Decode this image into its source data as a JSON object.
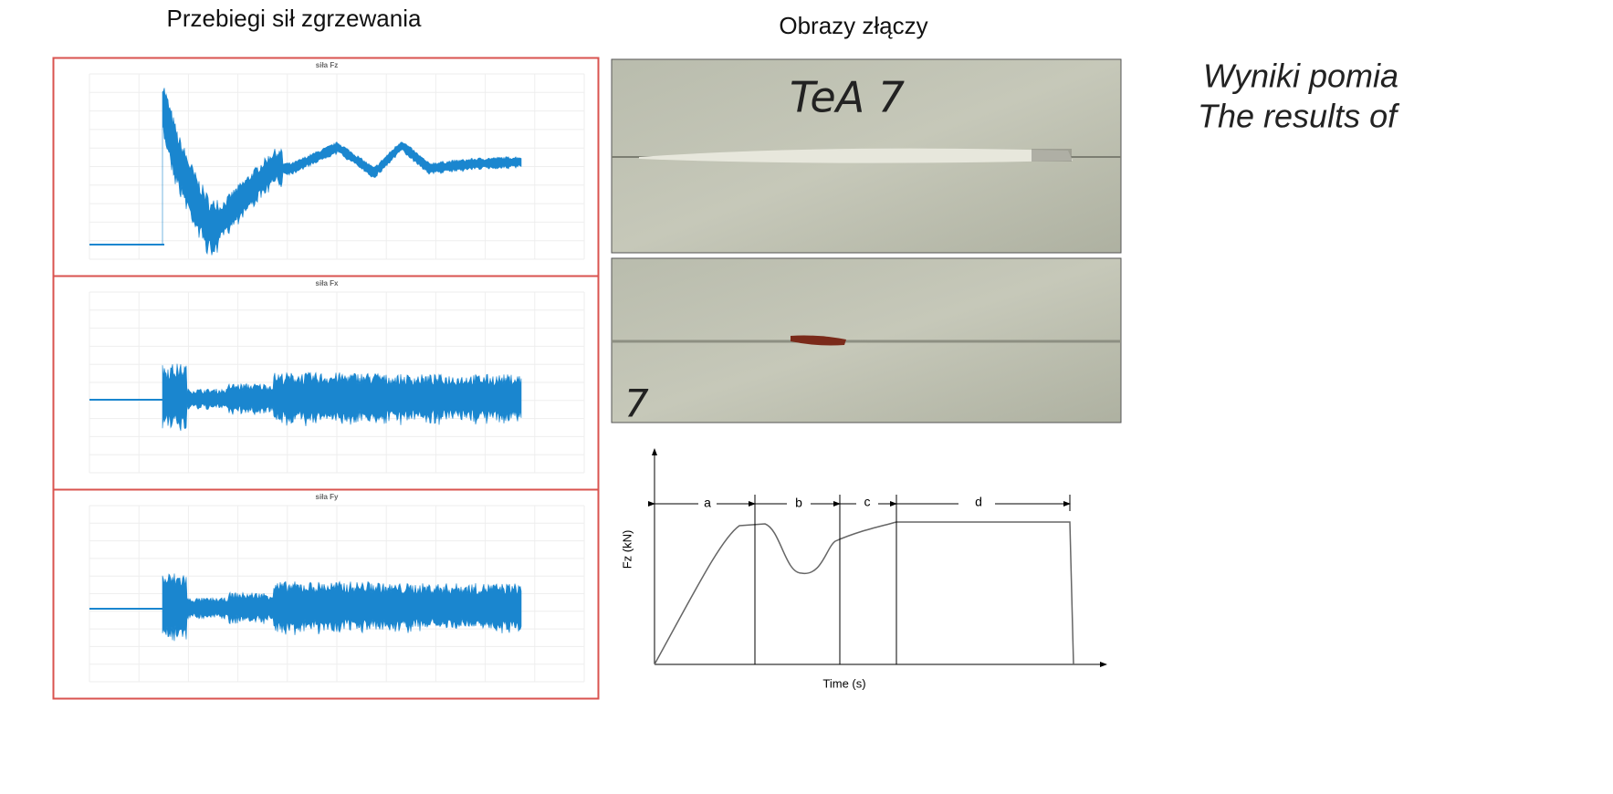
{
  "header": {
    "left_title": "Przebiegi sił zgrzewania",
    "middle_title": "Obrazy złączy",
    "right_lines": [
      "Wyniki pomia",
      "The results of"
    ]
  },
  "force_charts": [
    {
      "title": "siła Fz"
    },
    {
      "title": "siła Fx"
    },
    {
      "title": "siła Fy"
    }
  ],
  "photos": [
    {
      "label": "TeA 7"
    },
    {
      "label": "7"
    }
  ],
  "diagram": {
    "y_label": "Fz (kN)",
    "x_label": "Time (s)",
    "phases": [
      "a",
      "b",
      "c",
      "d"
    ]
  }
}
